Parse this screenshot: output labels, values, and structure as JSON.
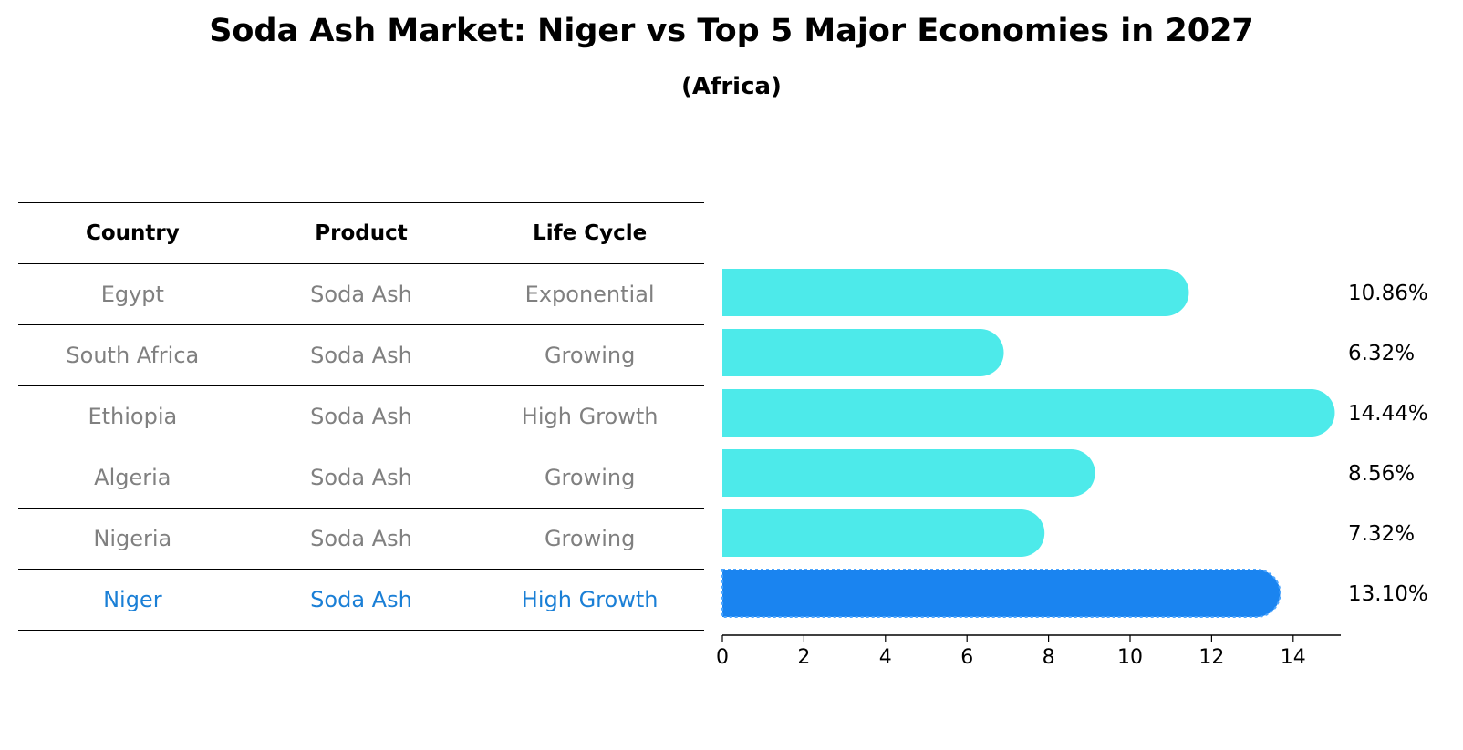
{
  "title": "Soda Ash Market: Niger vs Top 5 Major Economies in 2027",
  "subtitle": "(Africa)",
  "table": {
    "headers": [
      "Country",
      "Product",
      "Life Cycle"
    ],
    "rows": [
      [
        "Egypt",
        "Soda Ash",
        "Exponential"
      ],
      [
        "South Africa",
        "Soda Ash",
        "Growing"
      ],
      [
        "Ethiopia",
        "Soda Ash",
        "High Growth"
      ],
      [
        "Algeria",
        "Soda Ash",
        "Growing"
      ],
      [
        "Nigeria",
        "Soda Ash",
        "Growing"
      ],
      [
        "Niger",
        "Soda Ash",
        "High Growth"
      ]
    ]
  },
  "chart_data": {
    "type": "bar",
    "orientation": "horizontal",
    "categories": [
      "Egypt",
      "South Africa",
      "Ethiopia",
      "Algeria",
      "Nigeria",
      "Niger"
    ],
    "values": [
      10.86,
      6.32,
      14.44,
      8.56,
      7.32,
      13.1
    ],
    "value_labels": [
      "10.86%",
      "6.32%",
      "14.44%",
      "8.56%",
      "7.32%",
      "13.10%"
    ],
    "highlight": "Niger",
    "xticks": [
      0,
      2,
      4,
      6,
      8,
      10,
      12,
      14
    ],
    "xlim": [
      0,
      15.2
    ],
    "colors": {
      "bar": "#4deaea",
      "highlight": "#1a84f0"
    }
  }
}
